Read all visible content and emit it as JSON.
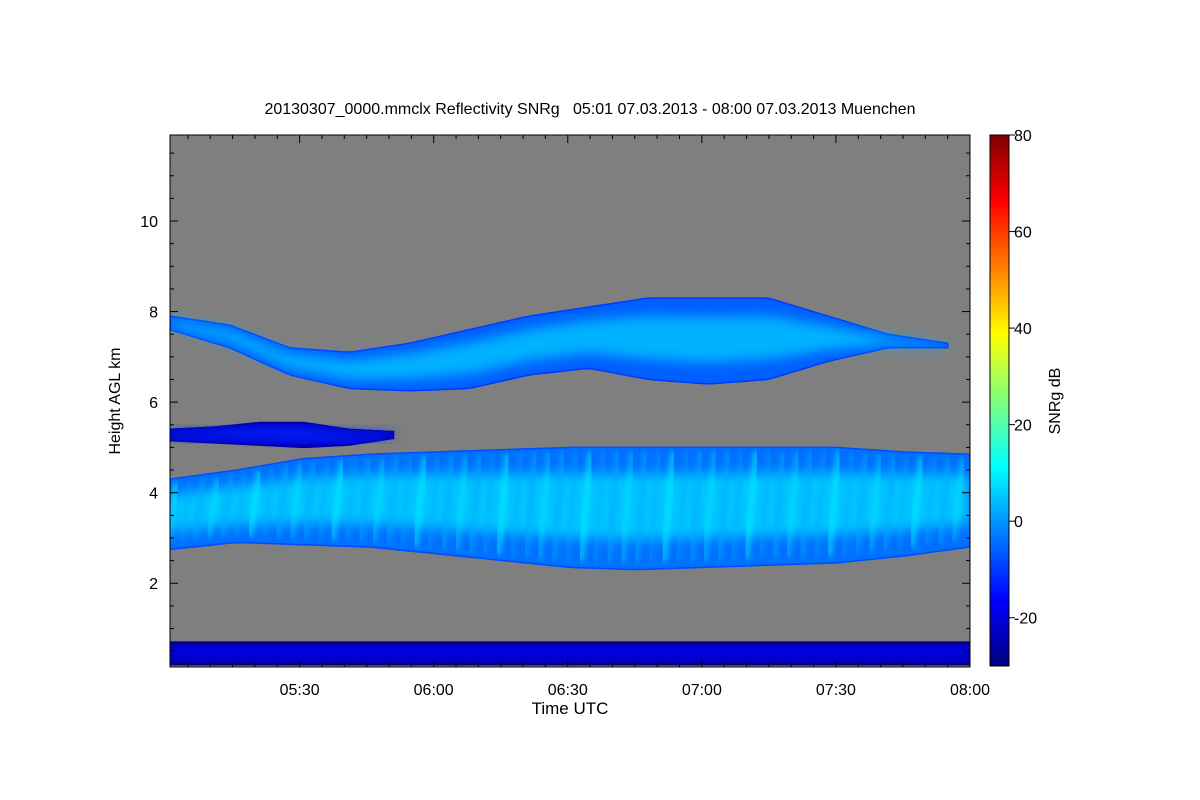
{
  "chart_data": {
    "type": "heatmap",
    "title": "20130307_0000.mmclx Reflectivity SNRg   05:01 07.03.2013 - 08:00 07.03.2013 Muenchen",
    "xlabel": "Time UTC",
    "ylabel": "Height AGL km",
    "colorbar_label": "SNRg dB",
    "x_range": [
      "05:01",
      "08:00"
    ],
    "xlim_minutes_utc": [
      301,
      480
    ],
    "x_ticks": [
      {
        "label": "05:30",
        "minute": 330
      },
      {
        "label": "06:00",
        "minute": 360
      },
      {
        "label": "06:30",
        "minute": 390
      },
      {
        "label": "07:00",
        "minute": 420
      },
      {
        "label": "07:30",
        "minute": 450
      },
      {
        "label": "08:00",
        "minute": 480
      }
    ],
    "ylim_km": [
      0.15,
      11.9
    ],
    "y_ticks": [
      2,
      4,
      6,
      8,
      10
    ],
    "colorbar_range_db": [
      -30,
      80
    ],
    "colorbar_ticks": [
      -20,
      0,
      20,
      40,
      60,
      80
    ],
    "colormap": [
      "#00007f",
      "#0000ff",
      "#007fff",
      "#00ffff",
      "#7fff7f",
      "#ffff00",
      "#ff7f00",
      "#ff0000",
      "#7f0000"
    ],
    "background_color": "#7f7f7f",
    "features": [
      {
        "name": "upper cloud layer",
        "start_min": 301,
        "end_min": 475,
        "top_km": [
          7.9,
          7.7,
          7.2,
          7.1,
          7.3,
          7.6,
          7.9,
          8.1,
          8.3,
          8.3,
          8.3,
          7.9,
          7.5,
          7.3
        ],
        "base_km": [
          7.6,
          7.2,
          6.6,
          6.3,
          6.25,
          6.3,
          6.6,
          6.75,
          6.5,
          6.4,
          6.5,
          6.9,
          7.2,
          7.2
        ],
        "peak_snr_db": 8
      },
      {
        "name": "thin layer",
        "start_min": 301,
        "end_min": 351,
        "top_km": [
          5.4,
          5.45,
          5.55,
          5.55,
          5.4,
          5.35
        ],
        "base_km": [
          5.15,
          5.1,
          5.05,
          5.0,
          5.05,
          5.2
        ],
        "peak_snr_db": -8
      },
      {
        "name": "main cloud layer with fall streaks",
        "start_min": 301,
        "end_min": 480,
        "top_km": [
          4.3,
          4.5,
          4.75,
          4.85,
          4.9,
          4.95,
          5.0,
          5.0,
          5.0,
          5.0,
          5.0,
          4.9,
          4.85
        ],
        "base_km": [
          2.75,
          2.9,
          2.85,
          2.8,
          2.65,
          2.5,
          2.35,
          2.3,
          2.35,
          2.4,
          2.45,
          2.6,
          2.8
        ],
        "peak_snr_db": 10
      },
      {
        "name": "low level clutter",
        "start_min": 301,
        "end_min": 480,
        "top_km": [
          0.7
        ],
        "base_km": [
          0.2
        ],
        "peak_snr_db": -12
      }
    ]
  }
}
